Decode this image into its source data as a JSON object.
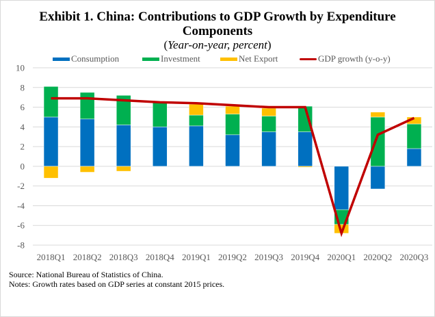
{
  "chart_data": {
    "type": "bar",
    "stacked": true,
    "title": "Exhibit 1. China: Contributions to GDP Growth by Expenditure Components",
    "title_line1": "Exhibit 1. China: Contributions to GDP Growth by Expenditure",
    "title_line2": "Components",
    "subtitle_open": "(",
    "subtitle_italic": "Year-on-year, percent",
    "subtitle_close": ")",
    "xlabel": "",
    "ylabel": "",
    "ylim": [
      -8,
      10
    ],
    "yticks": [
      10,
      8,
      6,
      4,
      2,
      0,
      -2,
      -4,
      -6,
      -8
    ],
    "grid": true,
    "legend_position": "top",
    "categories": [
      "2018Q1",
      "2018Q2",
      "2018Q3",
      "2018Q4",
      "2019Q1",
      "2019Q2",
      "2019Q3",
      "2019Q4",
      "2020Q1",
      "2020Q2",
      "2020Q3"
    ],
    "series": [
      {
        "name": "Consumption",
        "kind": "bar",
        "color": "#0070C0",
        "values": [
          5.0,
          4.8,
          4.2,
          4.0,
          4.1,
          3.2,
          3.5,
          3.5,
          -4.4,
          -2.3,
          1.8
        ]
      },
      {
        "name": "Investment",
        "kind": "bar",
        "color": "#00B050",
        "values": [
          3.1,
          2.7,
          3.0,
          2.5,
          1.1,
          2.1,
          1.6,
          2.6,
          -1.5,
          5.0,
          2.5
        ]
      },
      {
        "name": "Net Export",
        "kind": "bar",
        "color": "#FFC000",
        "values": [
          -1.2,
          -0.6,
          -0.5,
          0.0,
          1.1,
          0.8,
          0.8,
          -0.1,
          -0.9,
          0.5,
          0.7
        ]
      },
      {
        "name": "GDP growth (y-o-y)",
        "kind": "line",
        "color": "#C00000",
        "values": [
          6.9,
          6.9,
          6.7,
          6.5,
          6.4,
          6.2,
          6.0,
          6.0,
          -6.8,
          3.2,
          4.9
        ]
      }
    ]
  },
  "notes": {
    "source": "Source: National Bureau of Statistics of China.",
    "notes": "Notes: Growth rates based on GDP series at constant 2015 prices."
  },
  "colors": {
    "grid": "#d9d9d9",
    "axis_text": "#595959"
  }
}
